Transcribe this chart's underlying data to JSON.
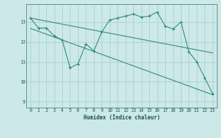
{
  "xlabel": "Humidex (Indice chaleur)",
  "background_color": "#cce8e8",
  "line_color": "#2e8b74",
  "grid_color": "#aacfcf",
  "xlim": [
    -0.5,
    23.5
  ],
  "ylim": [
    8.7,
    13.9
  ],
  "yticks": [
    9,
    10,
    11,
    12,
    13
  ],
  "xticks": [
    0,
    1,
    2,
    3,
    4,
    5,
    6,
    7,
    8,
    9,
    10,
    11,
    12,
    13,
    14,
    15,
    16,
    17,
    18,
    19,
    20,
    21,
    22,
    23
  ],
  "series1_x": [
    0,
    1,
    2,
    3,
    4,
    5,
    6,
    7,
    8,
    9,
    10,
    11,
    12,
    13,
    14,
    15,
    16,
    17,
    18,
    19,
    20,
    21,
    22,
    23
  ],
  "series1_y": [
    13.2,
    12.7,
    12.7,
    12.3,
    12.1,
    10.7,
    10.9,
    11.9,
    11.55,
    12.5,
    13.1,
    13.2,
    13.3,
    13.4,
    13.25,
    13.3,
    13.5,
    12.8,
    12.65,
    13.0,
    11.5,
    11.0,
    10.2,
    9.4
  ],
  "series2_x": [
    0,
    23
  ],
  "series2_y": [
    13.2,
    11.45
  ],
  "series3_x": [
    0,
    23
  ],
  "series3_y": [
    12.68,
    9.35
  ]
}
